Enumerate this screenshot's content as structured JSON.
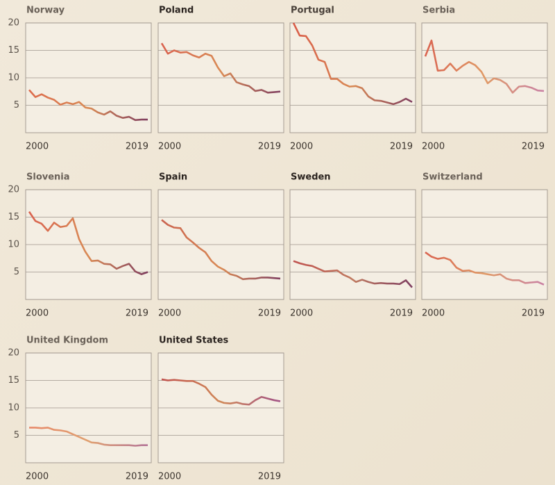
{
  "chart_data": [
    {
      "type": "line",
      "title": "Norway",
      "title_color": "#6b6259",
      "x": [
        2000,
        2001,
        2002,
        2003,
        2004,
        2005,
        2006,
        2007,
        2008,
        2009,
        2010,
        2011,
        2012,
        2013,
        2014,
        2015,
        2016,
        2017,
        2018,
        2019
      ],
      "values": [
        7.8,
        6.5,
        7.0,
        6.4,
        6.0,
        5.1,
        5.5,
        5.2,
        5.6,
        4.6,
        4.4,
        3.7,
        3.3,
        3.9,
        3.1,
        2.7,
        2.9,
        2.3,
        2.4,
        2.4
      ],
      "xlim": [
        2000,
        2019
      ],
      "ylim": [
        0,
        20
      ],
      "xticks": [
        2000,
        2019
      ],
      "yticks": [
        5,
        10,
        15,
        20
      ],
      "colors": [
        "#dd6a4c",
        "#d98a55",
        "#7a3a60"
      ]
    },
    {
      "type": "line",
      "title": "Poland",
      "title_color": "#2b2420",
      "x": [
        2000,
        2001,
        2002,
        2003,
        2004,
        2005,
        2006,
        2007,
        2008,
        2009,
        2010,
        2011,
        2012,
        2013,
        2014,
        2015,
        2016,
        2017,
        2018,
        2019
      ],
      "values": [
        16.3,
        14.4,
        15.0,
        14.6,
        14.7,
        14.1,
        13.7,
        14.4,
        14.0,
        11.9,
        10.3,
        10.8,
        9.2,
        8.8,
        8.5,
        7.6,
        7.8,
        7.3,
        7.4,
        7.5
      ],
      "xlim": [
        2000,
        2019
      ],
      "ylim": [
        0,
        20
      ],
      "xticks": [
        2000,
        2019
      ],
      "yticks": [
        5,
        10,
        15,
        20
      ],
      "colors": [
        "#d9604e",
        "#d98a55",
        "#7a3a60"
      ]
    },
    {
      "type": "line",
      "title": "Portugal",
      "title_color": "#4a413a",
      "x": [
        2000,
        2001,
        2002,
        2003,
        2004,
        2005,
        2006,
        2007,
        2008,
        2009,
        2010,
        2011,
        2012,
        2013,
        2014,
        2015,
        2016,
        2017,
        2018,
        2019
      ],
      "values": [
        20.0,
        17.7,
        17.6,
        15.9,
        13.3,
        12.9,
        9.8,
        9.8,
        8.9,
        8.4,
        8.5,
        8.1,
        6.6,
        5.9,
        5.8,
        5.5,
        5.2,
        5.6,
        6.2,
        5.6
      ],
      "xlim": [
        2000,
        2019
      ],
      "ylim": [
        0,
        20
      ],
      "xticks": [
        2000,
        2019
      ],
      "yticks": [
        5,
        10,
        15,
        20
      ],
      "colors": [
        "#d95a48",
        "#d98a55",
        "#7a3a60"
      ]
    },
    {
      "type": "line",
      "title": "Serbia",
      "title_color": "#6b6259",
      "x": [
        2000,
        2001,
        2002,
        2003,
        2004,
        2005,
        2006,
        2007,
        2008,
        2009,
        2010,
        2011,
        2012,
        2013,
        2014,
        2015,
        2016,
        2017,
        2018,
        2019
      ],
      "values": [
        13.9,
        16.8,
        11.3,
        11.4,
        12.6,
        11.3,
        12.2,
        12.9,
        12.3,
        11.1,
        9.0,
        9.9,
        9.6,
        8.9,
        7.3,
        8.4,
        8.5,
        8.2,
        7.7,
        7.6
      ],
      "xlim": [
        2000,
        2019
      ],
      "ylim": [
        0,
        20
      ],
      "xticks": [
        2000,
        2019
      ],
      "yticks": [
        5,
        10,
        15,
        20
      ],
      "colors": [
        "#d9604e",
        "#e09a66",
        "#c880a8"
      ]
    },
    {
      "type": "line",
      "title": "Slovenia",
      "title_color": "#6b6259",
      "x": [
        2000,
        2001,
        2002,
        2003,
        2004,
        2005,
        2006,
        2007,
        2008,
        2009,
        2010,
        2011,
        2012,
        2013,
        2014,
        2015,
        2016,
        2017,
        2018,
        2019
      ],
      "values": [
        16.0,
        14.3,
        13.8,
        12.5,
        14.0,
        13.2,
        13.4,
        14.8,
        11.0,
        8.7,
        7.0,
        7.1,
        6.5,
        6.4,
        5.6,
        6.1,
        6.5,
        5.1,
        4.6,
        5.0
      ],
      "xlim": [
        2000,
        2019
      ],
      "ylim": [
        0,
        20
      ],
      "xticks": [
        2000,
        2019
      ],
      "yticks": [
        5,
        10,
        15,
        20
      ],
      "colors": [
        "#d9604e",
        "#d98a55",
        "#7a3a60"
      ]
    },
    {
      "type": "line",
      "title": "Spain",
      "title_color": "#2b2420",
      "x": [
        2000,
        2001,
        2002,
        2003,
        2004,
        2005,
        2006,
        2007,
        2008,
        2009,
        2010,
        2011,
        2012,
        2013,
        2014,
        2015,
        2016,
        2017,
        2018,
        2019
      ],
      "values": [
        14.5,
        13.6,
        13.1,
        13.0,
        11.3,
        10.4,
        9.4,
        8.6,
        7.0,
        6.0,
        5.4,
        4.6,
        4.3,
        3.7,
        3.8,
        3.8,
        4.0,
        4.0,
        3.9,
        3.8
      ],
      "xlim": [
        2000,
        2019
      ],
      "ylim": [
        0,
        20
      ],
      "xticks": [
        2000,
        2019
      ],
      "yticks": [
        5,
        10,
        15,
        20
      ],
      "colors": [
        "#c9604e",
        "#d98a55",
        "#7a3a60"
      ]
    },
    {
      "type": "line",
      "title": "Sweden",
      "title_color": "#2b2420",
      "x": [
        2000,
        2001,
        2002,
        2003,
        2004,
        2005,
        2006,
        2007,
        2008,
        2009,
        2010,
        2011,
        2012,
        2013,
        2014,
        2015,
        2016,
        2017,
        2018,
        2019
      ],
      "values": [
        7.0,
        6.6,
        6.3,
        6.1,
        5.6,
        5.1,
        5.2,
        5.3,
        4.5,
        4.0,
        3.2,
        3.6,
        3.2,
        2.9,
        3.0,
        2.9,
        2.9,
        2.8,
        3.5,
        2.2
      ],
      "xlim": [
        2000,
        2019
      ],
      "ylim": [
        0,
        20
      ],
      "xticks": [
        2000,
        2019
      ],
      "yticks": [
        5,
        10,
        15,
        20
      ],
      "colors": [
        "#c0504e",
        "#c07a60",
        "#7a3a60"
      ]
    },
    {
      "type": "line",
      "title": "Switzerland",
      "title_color": "#6b6259",
      "x": [
        2000,
        2001,
        2002,
        2003,
        2004,
        2005,
        2006,
        2007,
        2008,
        2009,
        2010,
        2011,
        2012,
        2013,
        2014,
        2015,
        2016,
        2017,
        2018,
        2019
      ],
      "values": [
        8.6,
        7.8,
        7.4,
        7.6,
        7.2,
        5.8,
        5.2,
        5.3,
        4.9,
        4.8,
        4.6,
        4.4,
        4.6,
        3.8,
        3.5,
        3.5,
        3.0,
        3.1,
        3.2,
        2.7
      ],
      "xlim": [
        2000,
        2019
      ],
      "ylim": [
        0,
        20
      ],
      "xticks": [
        2000,
        2019
      ],
      "yticks": [
        5,
        10,
        15,
        20
      ],
      "colors": [
        "#d9604e",
        "#e09a66",
        "#c880a8"
      ]
    },
    {
      "type": "line",
      "title": "United Kingdom",
      "title_color": "#6b6259",
      "x": [
        2000,
        2001,
        2002,
        2003,
        2004,
        2005,
        2006,
        2007,
        2008,
        2009,
        2010,
        2011,
        2012,
        2013,
        2014,
        2015,
        2016,
        2017,
        2018,
        2019
      ],
      "values": [
        6.4,
        6.4,
        6.3,
        6.4,
        6.0,
        5.9,
        5.7,
        5.2,
        4.7,
        4.2,
        3.7,
        3.6,
        3.3,
        3.2,
        3.2,
        3.2,
        3.2,
        3.1,
        3.2,
        3.2
      ],
      "xlim": [
        2000,
        2019
      ],
      "ylim": [
        0,
        20
      ],
      "xticks": [
        2000,
        2019
      ],
      "yticks": [
        5,
        10,
        15,
        20
      ],
      "colors": [
        "#e8886a",
        "#e0a070",
        "#b07098"
      ]
    },
    {
      "type": "line",
      "title": "United States",
      "title_color": "#2b2420",
      "x": [
        2000,
        2001,
        2002,
        2003,
        2004,
        2005,
        2006,
        2007,
        2008,
        2009,
        2010,
        2011,
        2012,
        2013,
        2014,
        2015,
        2016,
        2017,
        2018,
        2019
      ],
      "values": [
        15.2,
        15.0,
        15.1,
        15.0,
        14.9,
        14.9,
        14.4,
        13.8,
        12.4,
        11.3,
        10.9,
        10.8,
        11.0,
        10.7,
        10.6,
        11.4,
        12.0,
        11.7,
        11.4,
        11.2
      ],
      "xlim": [
        2000,
        2019
      ],
      "ylim": [
        0,
        20
      ],
      "xticks": [
        2000,
        2019
      ],
      "yticks": [
        5,
        10,
        15,
        20
      ],
      "colors": [
        "#c0504e",
        "#d08858",
        "#a0508a"
      ]
    }
  ]
}
